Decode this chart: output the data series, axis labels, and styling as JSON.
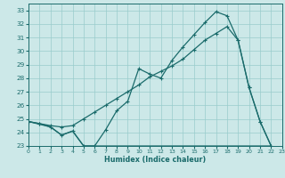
{
  "xlabel": "Humidex (Indice chaleur)",
  "bg_color": "#cce8e8",
  "grid_color": "#99cccc",
  "line_color": "#1a6b6b",
  "xlim": [
    0,
    23
  ],
  "ylim": [
    23,
    33.5
  ],
  "xticks": [
    0,
    1,
    2,
    3,
    4,
    5,
    6,
    7,
    8,
    9,
    10,
    11,
    12,
    13,
    14,
    15,
    16,
    17,
    18,
    19,
    20,
    21,
    22,
    23
  ],
  "yticks": [
    23,
    24,
    25,
    26,
    27,
    28,
    29,
    30,
    31,
    32,
    33
  ],
  "line_smooth_x": [
    0,
    1,
    2,
    3,
    4,
    5,
    6,
    7,
    8,
    9,
    10,
    11,
    12,
    13,
    14,
    15,
    16,
    17,
    18,
    19,
    20,
    21,
    22
  ],
  "line_smooth_y": [
    24.8,
    24.65,
    24.5,
    24.4,
    24.5,
    25.0,
    25.5,
    26.0,
    26.5,
    27.0,
    27.5,
    28.1,
    28.5,
    28.9,
    29.4,
    30.1,
    30.8,
    31.3,
    31.8,
    30.8,
    27.3,
    24.8,
    23.0
  ],
  "line_jagged_x": [
    0,
    1,
    2,
    3,
    4,
    5,
    6,
    7,
    8,
    9,
    10,
    11,
    12,
    13,
    14,
    15,
    16,
    17,
    18,
    19,
    20,
    21,
    22
  ],
  "line_jagged_y": [
    24.8,
    24.65,
    24.4,
    23.8,
    24.1,
    23.0,
    23.0,
    24.2,
    25.6,
    26.3,
    28.7,
    28.3,
    28.0,
    29.3,
    30.3,
    31.2,
    32.1,
    32.9,
    32.6,
    30.8,
    27.3,
    24.8,
    23.0
  ],
  "line_flat_x": [
    0,
    1,
    2,
    3,
    4,
    5,
    6,
    7,
    8,
    9,
    10,
    11,
    12,
    13,
    14,
    15,
    16,
    17,
    18,
    19,
    20,
    21,
    22
  ],
  "line_flat_y": [
    24.8,
    24.6,
    24.4,
    23.8,
    24.1,
    23.0,
    23.0,
    23.0,
    23.0,
    23.0,
    23.0,
    23.0,
    23.0,
    23.0,
    23.0,
    23.0,
    23.0,
    23.0,
    23.0,
    23.0,
    23.0,
    23.0,
    23.0
  ]
}
